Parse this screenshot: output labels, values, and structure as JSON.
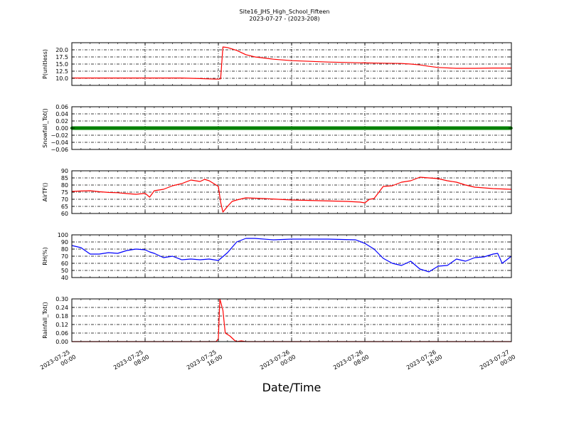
{
  "figure": {
    "title_line1": "Site16_JHS_High_School_Fifteen",
    "title_line2": "2023-07-27 - (2023-208)",
    "xlabel": "Date/Time"
  },
  "chart_data": {
    "type": "line",
    "x_range": [
      "2023-07-25 00:00",
      "2023-07-27 00:00"
    ],
    "x_ticks": [
      {
        "x": "2023-07-25 00:00",
        "label1": "2023-07-25",
        "label2": "00:00"
      },
      {
        "x": "2023-07-25 08:00",
        "label1": "2023-07-25",
        "label2": "08:00"
      },
      {
        "x": "2023-07-25 16:00",
        "label1": "2023-07-25",
        "label2": "16:00"
      },
      {
        "x": "2023-07-26 00:00",
        "label1": "2023-07-26",
        "label2": "00:00"
      },
      {
        "x": "2023-07-26 08:00",
        "label1": "2023-07-26",
        "label2": "08:00"
      },
      {
        "x": "2023-07-26 16:00",
        "label1": "2023-07-26",
        "label2": "16:00"
      },
      {
        "x": "2023-07-27 00:00",
        "label1": "2023-07-27",
        "label2": "00:00"
      }
    ],
    "grid": true,
    "panels": [
      {
        "ylabel": "P(unitless)",
        "ylim": [
          7.5,
          22.5
        ],
        "yticks": [
          "10.0",
          "12.5",
          "15.0",
          "17.5",
          "20.0"
        ],
        "ytick_values": [
          10,
          12.5,
          15,
          17.5,
          20
        ],
        "color": "#ff0000",
        "marker": false,
        "x": [
          "2023-07-25 00:00",
          "2023-07-25 02:00",
          "2023-07-25 04:00",
          "2023-07-25 06:00",
          "2023-07-25 08:00",
          "2023-07-25 10:00",
          "2023-07-25 12:00",
          "2023-07-25 14:00",
          "2023-07-25 15:45",
          "2023-07-25 16:15",
          "2023-07-25 16:30",
          "2023-07-25 17:00",
          "2023-07-25 18:00",
          "2023-07-25 19:00",
          "2023-07-25 20:00",
          "2023-07-25 22:00",
          "2023-07-26 00:00",
          "2023-07-26 04:00",
          "2023-07-26 08:00",
          "2023-07-26 10:00",
          "2023-07-26 12:00",
          "2023-07-26 13:00",
          "2023-07-26 14:00",
          "2023-07-26 15:00",
          "2023-07-26 16:00",
          "2023-07-26 18:00",
          "2023-07-26 20:00",
          "2023-07-26 22:00",
          "2023-07-27 00:00"
        ],
        "y": [
          10.1,
          10.1,
          10.1,
          10.1,
          10.1,
          10.1,
          10.1,
          9.9,
          9.7,
          9.8,
          21.0,
          20.8,
          19.8,
          18.3,
          17.5,
          16.7,
          16.2,
          15.7,
          15.4,
          15.3,
          15.2,
          15.0,
          14.7,
          14.2,
          13.8,
          13.5,
          13.5,
          13.6,
          13.6
        ]
      },
      {
        "ylabel": "Snowfall_Tot()",
        "ylim": [
          -0.06,
          0.06
        ],
        "yticks": [
          "−0.06",
          "−0.04",
          "−0.02",
          "0.00",
          "0.02",
          "0.04",
          "0.06"
        ],
        "ytick_values": [
          -0.06,
          -0.04,
          -0.02,
          0,
          0.02,
          0.04,
          0.06
        ],
        "color": "#008000",
        "marker": true,
        "x": [
          "2023-07-25 00:00",
          "2023-07-27 00:00"
        ],
        "y": [
          0,
          0
        ]
      },
      {
        "ylabel": "AirTF()",
        "ylim": [
          60,
          90
        ],
        "yticks": [
          "60",
          "65",
          "70",
          "75",
          "80",
          "85",
          "90"
        ],
        "ytick_values": [
          60,
          65,
          70,
          75,
          80,
          85,
          90
        ],
        "color": "#ff0000",
        "marker": false,
        "x": [
          "2023-07-25 00:00",
          "2023-07-25 01:00",
          "2023-07-25 02:00",
          "2023-07-25 03:00",
          "2023-07-25 04:00",
          "2023-07-25 05:00",
          "2023-07-25 06:00",
          "2023-07-25 07:00",
          "2023-07-25 07:45",
          "2023-07-25 08:00",
          "2023-07-25 08:30",
          "2023-07-25 09:00",
          "2023-07-25 10:00",
          "2023-07-25 11:00",
          "2023-07-25 12:00",
          "2023-07-25 13:00",
          "2023-07-25 14:00",
          "2023-07-25 14:30",
          "2023-07-25 15:00",
          "2023-07-25 15:30",
          "2023-07-25 16:00",
          "2023-07-25 16:15",
          "2023-07-25 16:30",
          "2023-07-25 17:00",
          "2023-07-25 17:30",
          "2023-07-25 18:00",
          "2023-07-25 19:00",
          "2023-07-25 21:00",
          "2023-07-26 00:00",
          "2023-07-26 03:00",
          "2023-07-26 06:00",
          "2023-07-26 07:30",
          "2023-07-26 08:00",
          "2023-07-26 08:30",
          "2023-07-26 09:00",
          "2023-07-26 10:00",
          "2023-07-26 11:00",
          "2023-07-26 12:00",
          "2023-07-26 13:00",
          "2023-07-26 14:00",
          "2023-07-26 15:00",
          "2023-07-26 16:00",
          "2023-07-26 17:00",
          "2023-07-26 18:00",
          "2023-07-26 19:00",
          "2023-07-26 20:00",
          "2023-07-26 22:00",
          "2023-07-27 00:00"
        ],
        "y": [
          75.5,
          75.8,
          76.0,
          75.3,
          74.8,
          74.6,
          74.0,
          73.5,
          74.0,
          74.2,
          71.5,
          76.0,
          77.0,
          79.5,
          81.0,
          83.5,
          82.5,
          84.0,
          83.0,
          81.0,
          79.0,
          68.0,
          61.0,
          65.0,
          68.5,
          69.5,
          71.0,
          70.5,
          69.5,
          69.0,
          68.5,
          68.0,
          67.5,
          70.0,
          70.5,
          79.0,
          79.5,
          82.0,
          83.0,
          85.5,
          85.0,
          84.5,
          83.0,
          82.0,
          80.0,
          78.5,
          77.5,
          77.0
        ]
      },
      {
        "ylabel": "RH(%)",
        "ylim": [
          40,
          100
        ],
        "yticks": [
          "40",
          "50",
          "60",
          "70",
          "80",
          "90",
          "100"
        ],
        "ytick_values": [
          40,
          50,
          60,
          70,
          80,
          90,
          100
        ],
        "color": "#0000ff",
        "marker": false,
        "x": [
          "2023-07-25 00:00",
          "2023-07-25 01:00",
          "2023-07-25 02:00",
          "2023-07-25 03:00",
          "2023-07-25 04:00",
          "2023-07-25 05:00",
          "2023-07-25 06:00",
          "2023-07-25 07:00",
          "2023-07-25 08:00",
          "2023-07-25 08:30",
          "2023-07-25 09:00",
          "2023-07-25 10:00",
          "2023-07-25 11:00",
          "2023-07-25 12:00",
          "2023-07-25 13:00",
          "2023-07-25 14:00",
          "2023-07-25 15:00",
          "2023-07-25 16:00",
          "2023-07-25 17:00",
          "2023-07-25 18:00",
          "2023-07-25 19:00",
          "2023-07-25 20:00",
          "2023-07-25 22:00",
          "2023-07-26 00:00",
          "2023-07-26 04:00",
          "2023-07-26 07:00",
          "2023-07-26 08:00",
          "2023-07-26 09:00",
          "2023-07-26 10:00",
          "2023-07-26 11:00",
          "2023-07-26 12:00",
          "2023-07-26 13:00",
          "2023-07-26 14:00",
          "2023-07-26 15:00",
          "2023-07-26 16:00",
          "2023-07-26 17:00",
          "2023-07-26 18:00",
          "2023-07-26 19:00",
          "2023-07-26 20:00",
          "2023-07-26 21:00",
          "2023-07-26 22:00",
          "2023-07-26 22:30",
          "2023-07-26 23:00",
          "2023-07-27 00:00"
        ],
        "y": [
          85,
          82,
          73,
          73,
          75,
          74,
          78,
          80,
          79,
          76,
          74,
          68,
          70,
          65,
          66,
          65,
          66,
          64,
          75,
          90,
          95,
          95,
          93,
          94,
          94,
          93,
          88,
          80,
          67,
          60,
          57,
          63,
          52,
          48,
          56,
          57,
          66,
          63,
          68,
          69,
          73,
          74,
          60,
          70
        ]
      },
      {
        "ylabel": "Rainfall_Tot()",
        "ylim": [
          0,
          0.3
        ],
        "yticks": [
          "0.00",
          "0.06",
          "0.12",
          "0.18",
          "0.24",
          "0.30"
        ],
        "ytick_values": [
          0,
          0.06,
          0.12,
          0.18,
          0.24,
          0.3
        ],
        "color": "#ff0000",
        "marker": false,
        "x": [
          "2023-07-25 00:00",
          "2023-07-25 15:45",
          "2023-07-25 16:00",
          "2023-07-25 16:10",
          "2023-07-25 16:30",
          "2023-07-25 16:45",
          "2023-07-25 17:15",
          "2023-07-25 17:45",
          "2023-07-25 18:00",
          "2023-07-25 18:30",
          "2023-07-25 19:00",
          "2023-07-27 00:00"
        ],
        "y": [
          0,
          0,
          0.02,
          0.3,
          0.22,
          0.06,
          0.04,
          0.01,
          0,
          0.005,
          0,
          0
        ]
      }
    ]
  }
}
